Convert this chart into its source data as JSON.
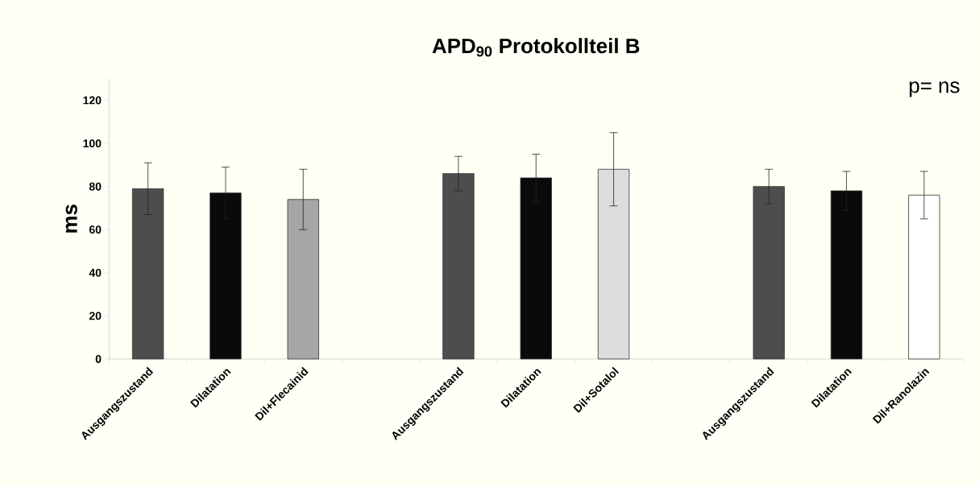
{
  "chart_data": {
    "type": "bar",
    "title": "APD$_{90}$ Protokollteil B",
    "ylabel": "ms",
    "annotations": [
      "p= ns"
    ],
    "categories": [
      "Ausgangszustand",
      "Dilatation",
      "Dil+Flecainid",
      null,
      "Ausgangszustand",
      "Dilatation",
      "Dil+Sotalol",
      null,
      "Ausgangszustand",
      "Dilatation",
      "Dil+Ranolazin"
    ],
    "values": [
      79,
      77,
      74,
      null,
      86,
      84,
      88,
      null,
      80,
      78,
      76
    ],
    "errors": [
      12,
      12,
      14,
      null,
      8,
      11,
      17,
      null,
      8,
      9,
      11
    ],
    "colors": [
      "#4d4d4d",
      "#0a0a0a",
      "#a6a6a6",
      null,
      "#4d4d4d",
      "#0a0a0a",
      "#dcdcdc",
      null,
      "#4d4d4d",
      "#0a0a0a",
      "#ffffff"
    ],
    "ylim": [
      0,
      130
    ],
    "yticks": [
      0,
      20,
      40,
      60,
      80,
      100,
      120
    ]
  }
}
